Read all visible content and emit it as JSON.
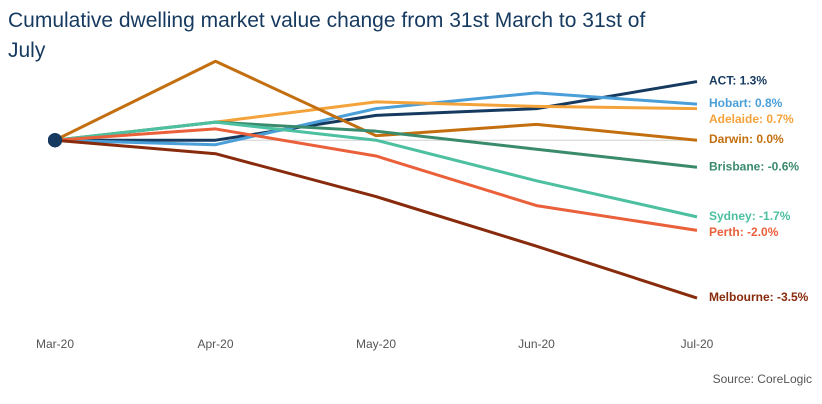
{
  "chart_data": {
    "type": "line",
    "title": "Cumulative dwelling market value change from 31st March to 31st of July",
    "source": "Source: CoreLogic",
    "categories": [
      "Mar-20",
      "Apr-20",
      "May-20",
      "Jun-20",
      "Jul-20"
    ],
    "ylim": [
      -4,
      2
    ],
    "zero_line": true,
    "series": [
      {
        "name": "ACT",
        "color": "#163a5f",
        "values": [
          0,
          0.0,
          0.55,
          0.7,
          1.3
        ],
        "value_labels": [
          null,
          null,
          null,
          null,
          ": 1.3%"
        ]
      },
      {
        "name": "Hobart",
        "color": "#4a9fd8",
        "values": [
          0,
          -0.1,
          0.7,
          1.05,
          0.8
        ],
        "value_labels": [
          null,
          null,
          null,
          null,
          ": 0.8%"
        ]
      },
      {
        "name": "Adelaide",
        "color": "#f4a23a",
        "values": [
          0,
          0.4,
          0.85,
          0.75,
          0.7
        ],
        "value_labels": [
          null,
          null,
          null,
          null,
          ": 0.7%"
        ]
      },
      {
        "name": "Darwin",
        "color": "#c36f0f",
        "values": [
          0,
          1.75,
          0.1,
          0.35,
          0.0
        ],
        "value_labels": [
          null,
          null,
          null,
          null,
          ": 0.0%"
        ]
      },
      {
        "name": "Brisbane",
        "color": "#3a8a6c",
        "values": [
          0,
          0.4,
          0.2,
          -0.2,
          -0.6
        ],
        "value_labels": [
          null,
          null,
          null,
          null,
          ": -0.6%"
        ]
      },
      {
        "name": "Sydney",
        "color": "#4cc0a0",
        "values": [
          0,
          0.4,
          0.0,
          -0.9,
          -1.7
        ],
        "value_labels": [
          null,
          null,
          null,
          null,
          ": -1.7%"
        ]
      },
      {
        "name": "Perth",
        "color": "#ea603a",
        "values": [
          0,
          0.25,
          -0.35,
          -1.45,
          -2.0
        ],
        "value_labels": [
          null,
          null,
          null,
          null,
          ": -2.0%"
        ]
      },
      {
        "name": "Melbourne",
        "color": "#882a0c",
        "values": [
          0,
          -0.3,
          -1.25,
          -2.35,
          -3.5
        ],
        "value_labels": [
          null,
          null,
          null,
          null,
          ": -3.5%"
        ]
      }
    ]
  }
}
